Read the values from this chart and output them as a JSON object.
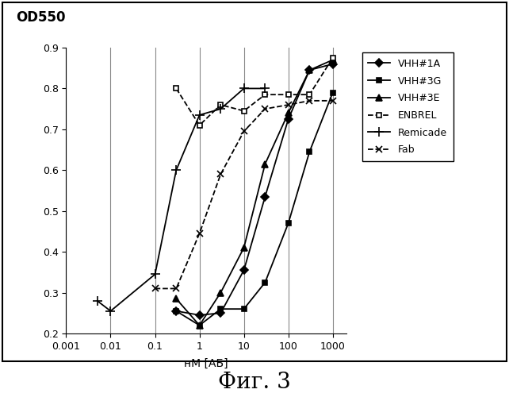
{
  "series": [
    {
      "label": "VHH#1A",
      "marker": "D",
      "linestyle": "-",
      "color": "#000000",
      "markersize": 5,
      "markerfacecolor": "#000000",
      "x": [
        0.3,
        1.0,
        3.0,
        10.0,
        30.0,
        100.0,
        300.0,
        1000.0
      ],
      "y": [
        0.255,
        0.245,
        0.25,
        0.355,
        0.535,
        0.725,
        0.845,
        0.86
      ]
    },
    {
      "label": "VHH#3G",
      "marker": "s",
      "linestyle": "-",
      "color": "#000000",
      "markersize": 5,
      "markerfacecolor": "#000000",
      "x": [
        0.3,
        1.0,
        3.0,
        10.0,
        30.0,
        100.0,
        300.0,
        1000.0
      ],
      "y": [
        0.255,
        0.22,
        0.26,
        0.26,
        0.325,
        0.47,
        0.645,
        0.79
      ]
    },
    {
      "label": "VHH#3E",
      "marker": "^",
      "linestyle": "-",
      "color": "#000000",
      "markersize": 6,
      "markerfacecolor": "#000000",
      "x": [
        0.3,
        1.0,
        3.0,
        10.0,
        30.0,
        100.0,
        300.0,
        1000.0
      ],
      "y": [
        0.285,
        0.22,
        0.3,
        0.41,
        0.615,
        0.74,
        0.845,
        0.87
      ]
    },
    {
      "label": "ENBREL",
      "marker": "s",
      "linestyle": "--",
      "color": "#000000",
      "markersize": 5,
      "markerfacecolor": "white",
      "x": [
        0.3,
        1.0,
        3.0,
        10.0,
        30.0,
        100.0,
        300.0,
        1000.0
      ],
      "y": [
        0.8,
        0.71,
        0.76,
        0.745,
        0.785,
        0.785,
        0.785,
        0.875
      ]
    },
    {
      "label": "Remicade",
      "marker": "+",
      "linestyle": "-",
      "color": "#000000",
      "markersize": 8,
      "markerfacecolor": "#000000",
      "x": [
        0.005,
        0.01,
        0.1,
        0.3,
        1.0,
        3.0,
        10.0,
        30.0
      ],
      "y": [
        0.28,
        0.255,
        0.345,
        0.6,
        0.735,
        0.75,
        0.8,
        0.8
      ]
    },
    {
      "label": "Fab",
      "marker": "x",
      "linestyle": "--",
      "color": "#000000",
      "markersize": 6,
      "markerfacecolor": "#000000",
      "x": [
        0.1,
        0.3,
        1.0,
        3.0,
        10.0,
        30.0,
        100.0,
        300.0,
        1000.0
      ],
      "y": [
        0.31,
        0.31,
        0.445,
        0.59,
        0.695,
        0.75,
        0.76,
        0.77,
        0.77
      ]
    }
  ],
  "ylabel": "OD550",
  "xlabel": "нМ [АБ]",
  "title": "Фиг. 3",
  "ylim": [
    0.2,
    0.9
  ],
  "xlim": [
    0.001,
    2000
  ],
  "yticks": [
    0.2,
    0.3,
    0.4,
    0.5,
    0.6,
    0.7,
    0.8,
    0.9
  ],
  "xticks": [
    0.001,
    0.01,
    0.1,
    1,
    10,
    100,
    1000
  ],
  "xtick_labels": [
    "0.001",
    "0.01",
    "0.1",
    "1",
    "10",
    "100",
    "1000"
  ],
  "background_color": "#ffffff",
  "grid_color": "#888888",
  "border_color": "#000000"
}
